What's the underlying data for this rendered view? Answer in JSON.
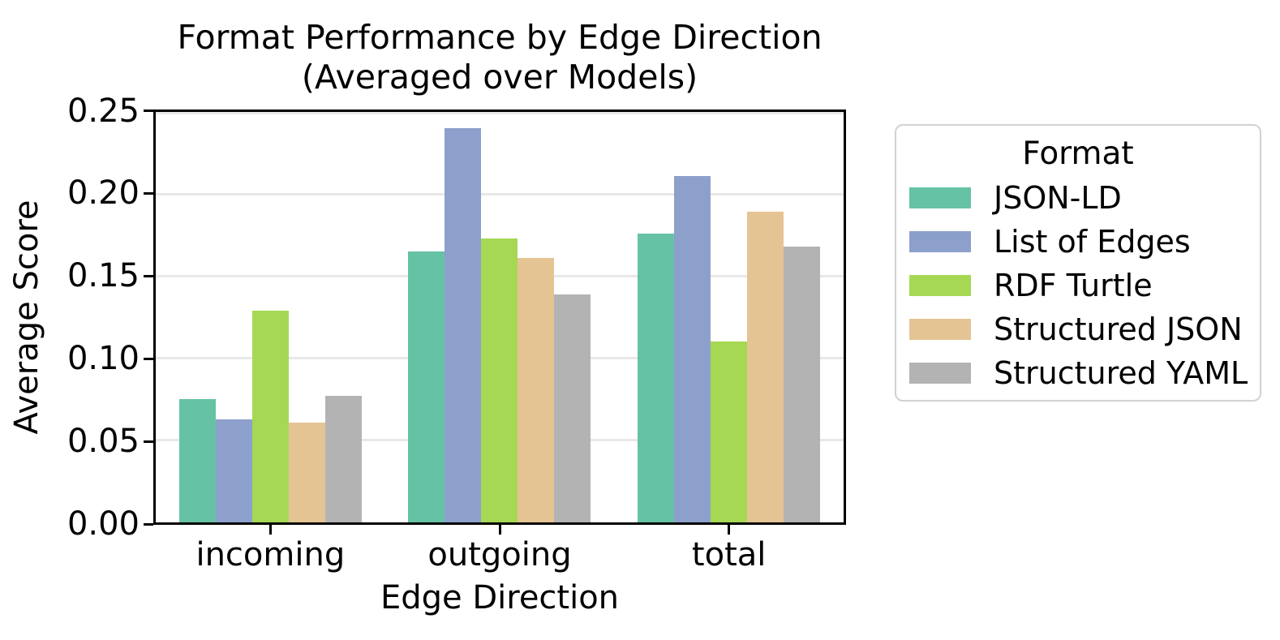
{
  "chart_data": {
    "type": "bar",
    "title": "Format Performance by Edge Direction",
    "subtitle": "(Averaged over Models)",
    "xlabel": "Edge Direction",
    "ylabel": "Average Score",
    "categories": [
      "incoming",
      "outgoing",
      "total"
    ],
    "series": [
      {
        "name": "JSON-LD",
        "color": "#66c2a5",
        "values": [
          0.075,
          0.165,
          0.176
        ]
      },
      {
        "name": "List of Edges",
        "color": "#8da0cb",
        "values": [
          0.063,
          0.24,
          0.211
        ]
      },
      {
        "name": "RDF Turtle",
        "color": "#a6d854",
        "values": [
          0.129,
          0.173,
          0.11
        ]
      },
      {
        "name": "Structured JSON",
        "color": "#e5c494",
        "values": [
          0.061,
          0.161,
          0.189
        ]
      },
      {
        "name": "Structured YAML",
        "color": "#b3b3b3",
        "values": [
          0.077,
          0.139,
          0.168
        ]
      }
    ],
    "ylim": [
      0,
      0.25
    ],
    "yticks": [
      0,
      0.05,
      0.1,
      0.15,
      0.2,
      0.25
    ],
    "ytick_labels": [
      "0.00",
      "0.05",
      "0.10",
      "0.15",
      "0.20",
      "0.25"
    ],
    "grid": "horizontal",
    "legend": {
      "title": "Format",
      "position": "right"
    },
    "colors": {
      "spine": "#000000",
      "gridline": "#e8e8e8",
      "legend_border": "#d2d2d2",
      "background": "#ffffff"
    }
  }
}
